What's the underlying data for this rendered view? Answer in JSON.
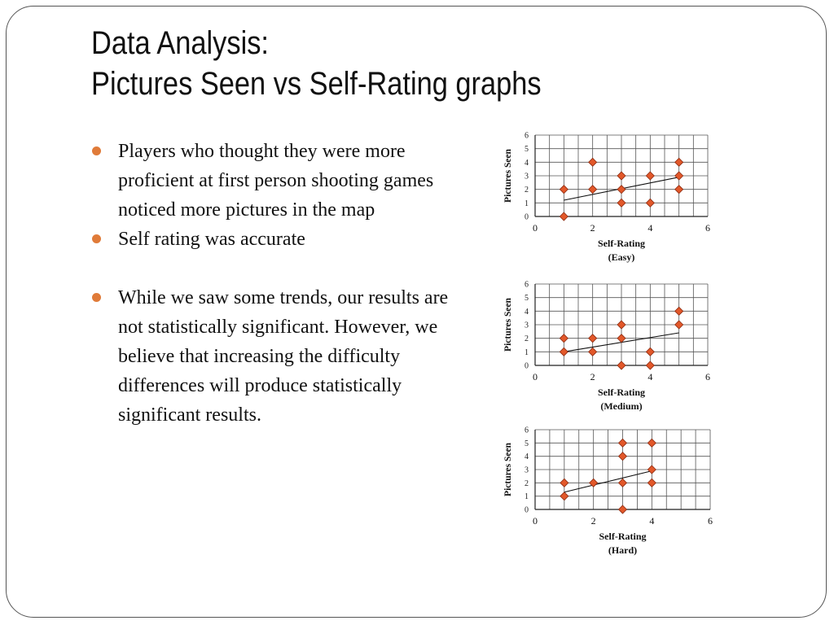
{
  "slide": {
    "title_line1": "Data Analysis:",
    "title_line2": "Pictures Seen vs Self-Rating graphs",
    "bullets": [
      "Players who thought they were more proficient at first person shooting games noticed more pictures in the map",
      "Self rating was accurate",
      "While we saw some trends, our results are not statistically significant.  However, we believe that increasing the difficulty differences will produce statistically significant results."
    ],
    "bullet_color": "#e07b39"
  },
  "chart_data": [
    {
      "type": "scatter",
      "title": "",
      "xlabel": "Self-Rating",
      "xlabel_sub": "(Easy)",
      "ylabel": "Pictures Seen",
      "xlim": [
        0,
        6
      ],
      "ylim": [
        0,
        6
      ],
      "x_ticks": [
        0,
        2,
        4,
        6
      ],
      "y_ticks": [
        0,
        1,
        2,
        3,
        4,
        5,
        6
      ],
      "grid": true,
      "marker": "diamond",
      "marker_color": "#e2582a",
      "points": [
        [
          1,
          0
        ],
        [
          1,
          2
        ],
        [
          2,
          2
        ],
        [
          2,
          4
        ],
        [
          3,
          1
        ],
        [
          3,
          2
        ],
        [
          3,
          3
        ],
        [
          4,
          1
        ],
        [
          4,
          3
        ],
        [
          5,
          2
        ],
        [
          5,
          3
        ],
        [
          5,
          4
        ]
      ],
      "trendline": [
        [
          1,
          1.2
        ],
        [
          5,
          2.9
        ]
      ]
    },
    {
      "type": "scatter",
      "title": "",
      "xlabel": "Self-Rating",
      "xlabel_sub": "(Medium)",
      "ylabel": "Pictures Seen",
      "xlim": [
        0,
        6
      ],
      "ylim": [
        0,
        6
      ],
      "x_ticks": [
        0,
        2,
        4,
        6
      ],
      "y_ticks": [
        0,
        1,
        2,
        3,
        4,
        5,
        6
      ],
      "grid": true,
      "marker": "diamond",
      "marker_color": "#e2582a",
      "points": [
        [
          1,
          1
        ],
        [
          1,
          2
        ],
        [
          2,
          1
        ],
        [
          2,
          2
        ],
        [
          3,
          0
        ],
        [
          3,
          2
        ],
        [
          3,
          3
        ],
        [
          4,
          0
        ],
        [
          4,
          1
        ],
        [
          5,
          3
        ],
        [
          5,
          4
        ]
      ],
      "trendline": [
        [
          1,
          1
        ],
        [
          5,
          2.4
        ]
      ]
    },
    {
      "type": "scatter",
      "title": "",
      "xlabel": "Self-Rating",
      "xlabel_sub": "(Hard)",
      "ylabel": "Pictures Seen",
      "xlim": [
        0,
        6
      ],
      "ylim": [
        0,
        6
      ],
      "x_ticks": [
        0,
        2,
        4,
        6
      ],
      "y_ticks": [
        0,
        1,
        2,
        3,
        4,
        5,
        6
      ],
      "grid": true,
      "marker": "diamond",
      "marker_color": "#e2582a",
      "points": [
        [
          1,
          1
        ],
        [
          1,
          2
        ],
        [
          2,
          2
        ],
        [
          3,
          0
        ],
        [
          3,
          2
        ],
        [
          3,
          4
        ],
        [
          3,
          5
        ],
        [
          4,
          2
        ],
        [
          4,
          3
        ],
        [
          4,
          5
        ]
      ],
      "trendline": [
        [
          1,
          1.3
        ],
        [
          4,
          2.9
        ]
      ]
    }
  ]
}
